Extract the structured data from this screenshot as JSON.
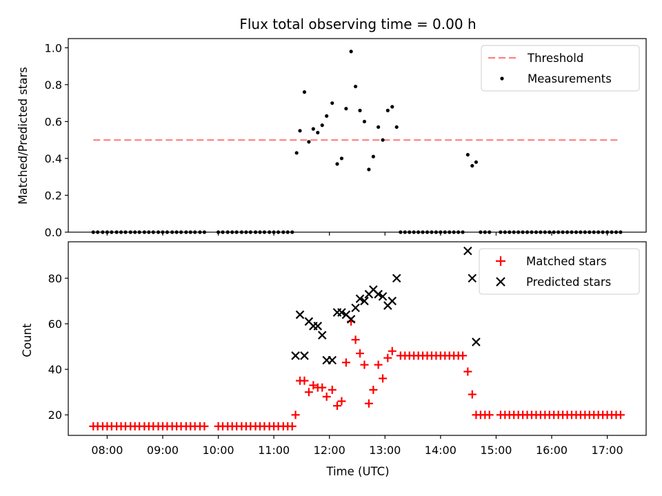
{
  "chart_data": {
    "title": "Flux total observing time = 0.00 h",
    "xlabel": "Time (UTC)",
    "x_tick_labels": [
      "08:00",
      "09:00",
      "10:00",
      "11:00",
      "12:00",
      "13:00",
      "14:00",
      "15:00",
      "16:00",
      "17:00"
    ],
    "x_tick_values": [
      8,
      9,
      10,
      11,
      12,
      13,
      14,
      15,
      16,
      17
    ],
    "xlim": [
      7.3,
      17.7
    ],
    "panels": [
      {
        "type": "scatter",
        "ylabel": "Matched/Predicted stars",
        "ylim": [
          0,
          1.05
        ],
        "y_ticks": [
          0.0,
          0.2,
          0.4,
          0.6,
          0.8,
          1.0
        ],
        "y_tick_labels": [
          "0.0",
          "0.2",
          "0.4",
          "0.6",
          "0.8",
          "1.0"
        ],
        "legend": {
          "position": "upper-right",
          "entries": [
            "Threshold",
            "Measurements"
          ]
        },
        "threshold": {
          "name": "Threshold",
          "value": 0.5,
          "x_range": [
            7.75,
            17.2
          ],
          "color": "#ff7777"
        },
        "measurements": {
          "name": "Measurements",
          "color": "#000000",
          "zero_x": [
            7.75,
            7.83,
            7.92,
            8.0,
            8.08,
            8.17,
            8.25,
            8.33,
            8.42,
            8.5,
            8.58,
            8.67,
            8.75,
            8.83,
            8.92,
            9.0,
            9.08,
            9.17,
            9.25,
            9.33,
            9.42,
            9.5,
            9.58,
            9.67,
            9.75,
            10.0,
            10.08,
            10.17,
            10.25,
            10.33,
            10.42,
            10.5,
            10.58,
            10.67,
            10.75,
            10.83,
            10.92,
            11.0,
            11.08,
            11.17,
            11.25,
            11.33,
            13.28,
            13.36,
            13.44,
            13.52,
            13.6,
            13.68,
            13.76,
            13.84,
            13.92,
            14.0,
            14.08,
            14.16,
            14.24,
            14.32,
            14.4,
            14.72,
            14.8,
            14.88,
            15.08,
            15.16,
            15.24,
            15.32,
            15.4,
            15.48,
            15.56,
            15.64,
            15.72,
            15.8,
            15.88,
            15.96,
            16.04,
            16.12,
            16.2,
            16.28,
            16.36,
            16.44,
            16.52,
            16.6,
            16.68,
            16.76,
            16.84,
            16.92,
            17.0,
            17.08,
            17.16,
            17.24
          ],
          "points": [
            [
              11.41,
              0.43
            ],
            [
              11.47,
              0.55
            ],
            [
              11.55,
              0.76
            ],
            [
              11.63,
              0.49
            ],
            [
              11.71,
              0.56
            ],
            [
              11.79,
              0.54
            ],
            [
              11.87,
              0.58
            ],
            [
              11.95,
              0.63
            ],
            [
              12.05,
              0.7
            ],
            [
              12.14,
              0.37
            ],
            [
              12.22,
              0.4
            ],
            [
              12.3,
              0.67
            ],
            [
              12.39,
              0.98
            ],
            [
              12.47,
              0.79
            ],
            [
              12.55,
              0.66
            ],
            [
              12.63,
              0.6
            ],
            [
              12.71,
              0.34
            ],
            [
              12.79,
              0.41
            ],
            [
              12.88,
              0.57
            ],
            [
              12.96,
              0.5
            ],
            [
              13.05,
              0.66
            ],
            [
              13.13,
              0.68
            ],
            [
              13.21,
              0.57
            ],
            [
              14.49,
              0.42
            ],
            [
              14.57,
              0.36
            ],
            [
              14.64,
              0.38
            ]
          ]
        }
      },
      {
        "type": "scatter",
        "ylabel": "Count",
        "ylim": [
          11,
          96
        ],
        "y_ticks": [
          20,
          40,
          60,
          80
        ],
        "y_tick_labels": [
          "20",
          "40",
          "60",
          "80"
        ],
        "legend": {
          "position": "upper-right",
          "entries": [
            "Matched stars",
            "Predicted stars"
          ]
        },
        "matched": {
          "name": "Matched stars",
          "color": "#ff0000",
          "flat_segments": [
            {
              "y": 15,
              "x": [
                7.75,
                7.83,
                7.92,
                8.0,
                8.08,
                8.17,
                8.25,
                8.33,
                8.42,
                8.5,
                8.58,
                8.67,
                8.75,
                8.83,
                8.92,
                9.0,
                9.08,
                9.17,
                9.25,
                9.33,
                9.42,
                9.5,
                9.58,
                9.67,
                9.75,
                10.0,
                10.08,
                10.17,
                10.25,
                10.33,
                10.42,
                10.5,
                10.58,
                10.67,
                10.75,
                10.83,
                10.92,
                11.0,
                11.08,
                11.17,
                11.25,
                11.33
              ]
            },
            {
              "y": 46,
              "x": [
                13.28,
                13.36,
                13.44,
                13.52,
                13.6,
                13.68,
                13.76,
                13.84,
                13.92,
                14.0,
                14.08,
                14.16,
                14.24,
                14.32,
                14.4
              ]
            },
            {
              "y": 20,
              "x": [
                14.72,
                14.8,
                14.88,
                15.08,
                15.16,
                15.24,
                15.32,
                15.4,
                15.48,
                15.56,
                15.64,
                15.72,
                15.8,
                15.88,
                15.96,
                16.04,
                16.12,
                16.2,
                16.28,
                16.36,
                16.44,
                16.52,
                16.6,
                16.68,
                16.76,
                16.84,
                16.92,
                17.0,
                17.08,
                17.16,
                17.24
              ]
            }
          ],
          "points": [
            [
              11.39,
              20
            ],
            [
              11.47,
              35
            ],
            [
              11.55,
              35
            ],
            [
              11.63,
              30
            ],
            [
              11.71,
              33
            ],
            [
              11.79,
              32
            ],
            [
              11.87,
              32
            ],
            [
              11.95,
              28
            ],
            [
              12.05,
              31
            ],
            [
              12.14,
              24
            ],
            [
              12.22,
              26
            ],
            [
              12.3,
              43
            ],
            [
              12.39,
              61
            ],
            [
              12.47,
              53
            ],
            [
              12.55,
              47
            ],
            [
              12.63,
              42
            ],
            [
              12.71,
              25
            ],
            [
              12.79,
              31
            ],
            [
              12.88,
              42
            ],
            [
              12.96,
              36
            ],
            [
              13.05,
              45
            ],
            [
              13.13,
              48
            ],
            [
              14.49,
              39
            ],
            [
              14.57,
              29
            ],
            [
              14.64,
              20
            ]
          ]
        },
        "predicted": {
          "name": "Predicted stars",
          "color": "#000000",
          "points": [
            [
              11.39,
              46
            ],
            [
              11.47,
              64
            ],
            [
              11.55,
              46
            ],
            [
              11.63,
              61
            ],
            [
              11.71,
              59
            ],
            [
              11.79,
              59
            ],
            [
              11.87,
              55
            ],
            [
              11.95,
              44
            ],
            [
              12.05,
              44
            ],
            [
              12.14,
              65
            ],
            [
              12.22,
              65
            ],
            [
              12.3,
              64
            ],
            [
              12.39,
              62
            ],
            [
              12.47,
              67
            ],
            [
              12.55,
              71
            ],
            [
              12.63,
              70
            ],
            [
              12.71,
              73
            ],
            [
              12.79,
              75
            ],
            [
              12.88,
              73
            ],
            [
              12.96,
              72
            ],
            [
              13.05,
              68
            ],
            [
              13.13,
              70
            ],
            [
              13.21,
              80
            ],
            [
              14.49,
              92
            ],
            [
              14.57,
              80
            ],
            [
              14.64,
              52
            ]
          ]
        }
      }
    ]
  }
}
